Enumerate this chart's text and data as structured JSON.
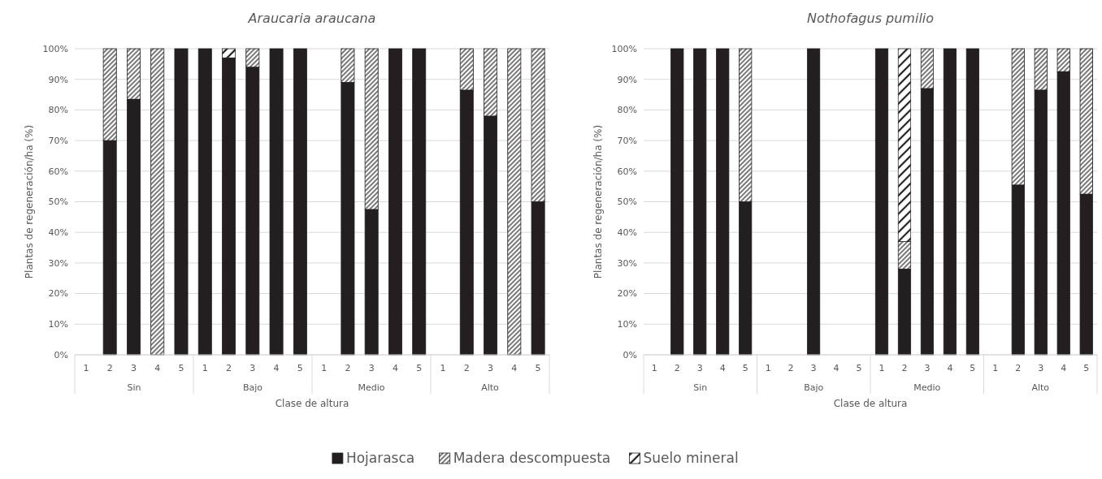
{
  "chart_data": [
    {
      "type": "bar",
      "title": "Araucaria araucana",
      "xlabel": "Clase de altura",
      "ylabel": "Plantas de regeneración/ha (%)",
      "stacked": true,
      "grid": "y",
      "legend": "bottom",
      "categories": [
        "1",
        "2",
        "3",
        "4",
        "5",
        "1",
        "2",
        "3",
        "4",
        "5",
        "1",
        "2",
        "3",
        "4",
        "5",
        "1",
        "2",
        "3",
        "4",
        "5"
      ],
      "annotations": [
        "Sin",
        "Bajo",
        "Medio",
        "Alto"
      ],
      "ylim": [
        0,
        100
      ],
      "yticks": [
        {
          "value": 0,
          "label": "0%"
        },
        {
          "value": 10,
          "label": "10%"
        },
        {
          "value": 20,
          "label": "20%"
        },
        {
          "value": 30,
          "label": "30%"
        },
        {
          "value": 40,
          "label": "40%"
        },
        {
          "value": 50,
          "label": "50%"
        },
        {
          "value": 60,
          "label": "60%"
        },
        {
          "value": 70,
          "label": "70%"
        },
        {
          "value": 80,
          "label": "80%"
        },
        {
          "value": 90,
          "label": "90%"
        },
        {
          "value": 100,
          "label": "100%"
        }
      ],
      "series": [
        {
          "name": "Hojarasca",
          "color": "#231f20",
          "values": [
            null,
            70,
            83.5,
            null,
            100,
            100,
            97,
            94,
            100,
            100,
            null,
            89,
            47.5,
            100,
            100,
            null,
            86.5,
            78,
            null,
            50
          ]
        },
        {
          "name": "Madera descompuesta",
          "color": "#231f20",
          "values": [
            null,
            30,
            16.5,
            100,
            null,
            null,
            null,
            6,
            null,
            null,
            null,
            11,
            52.5,
            null,
            null,
            null,
            13.5,
            22,
            100,
            50
          ]
        },
        {
          "name": "Suelo mineral",
          "color": "#231f20",
          "values": [
            null,
            null,
            null,
            null,
            null,
            null,
            3,
            null,
            null,
            null,
            null,
            null,
            null,
            null,
            null,
            null,
            null,
            null,
            null,
            null
          ]
        }
      ]
    },
    {
      "type": "bar",
      "title": "Nothofagus pumilio",
      "xlabel": "Clase de altura",
      "ylabel": "Plantas de regeneración/ha (%)",
      "stacked": true,
      "grid": "y",
      "categories": [
        "1",
        "2",
        "3",
        "4",
        "5",
        "1",
        "2",
        "3",
        "4",
        "5",
        "1",
        "2",
        "3",
        "4",
        "5",
        "1",
        "2",
        "3",
        "4",
        "5"
      ],
      "annotations": [
        "Sin",
        "Bajo",
        "Medio",
        "Alto"
      ],
      "ylim": [
        0,
        100
      ],
      "yticks": [
        {
          "value": 0,
          "label": "0%"
        },
        {
          "value": 10,
          "label": "10%"
        },
        {
          "value": 20,
          "label": "20%"
        },
        {
          "value": 30,
          "label": "30%"
        },
        {
          "value": 40,
          "label": "40%"
        },
        {
          "value": 50,
          "label": "50%"
        },
        {
          "value": 60,
          "label": "60%"
        },
        {
          "value": 70,
          "label": "70%"
        },
        {
          "value": 80,
          "label": "80%"
        },
        {
          "value": 90,
          "label": "90%"
        },
        {
          "value": 100,
          "label": "100%"
        }
      ],
      "series": [
        {
          "color": "#231f20",
          "values": [
            null,
            100,
            100,
            100,
            50,
            null,
            null,
            100,
            null,
            null,
            100,
            28,
            87,
            100,
            100,
            null,
            55.5,
            86.5,
            92.5,
            52.5
          ]
        },
        {
          "color": "#231f20",
          "values": [
            null,
            null,
            null,
            null,
            50,
            null,
            null,
            null,
            null,
            null,
            null,
            9,
            13,
            null,
            null,
            null,
            44.5,
            13.5,
            7.5,
            47.5
          ]
        },
        {
          "color": "#231f20",
          "values": [
            null,
            null,
            null,
            null,
            null,
            null,
            null,
            null,
            null,
            null,
            null,
            63,
            null,
            null,
            null,
            null,
            null,
            null,
            null,
            null
          ]
        }
      ]
    }
  ]
}
